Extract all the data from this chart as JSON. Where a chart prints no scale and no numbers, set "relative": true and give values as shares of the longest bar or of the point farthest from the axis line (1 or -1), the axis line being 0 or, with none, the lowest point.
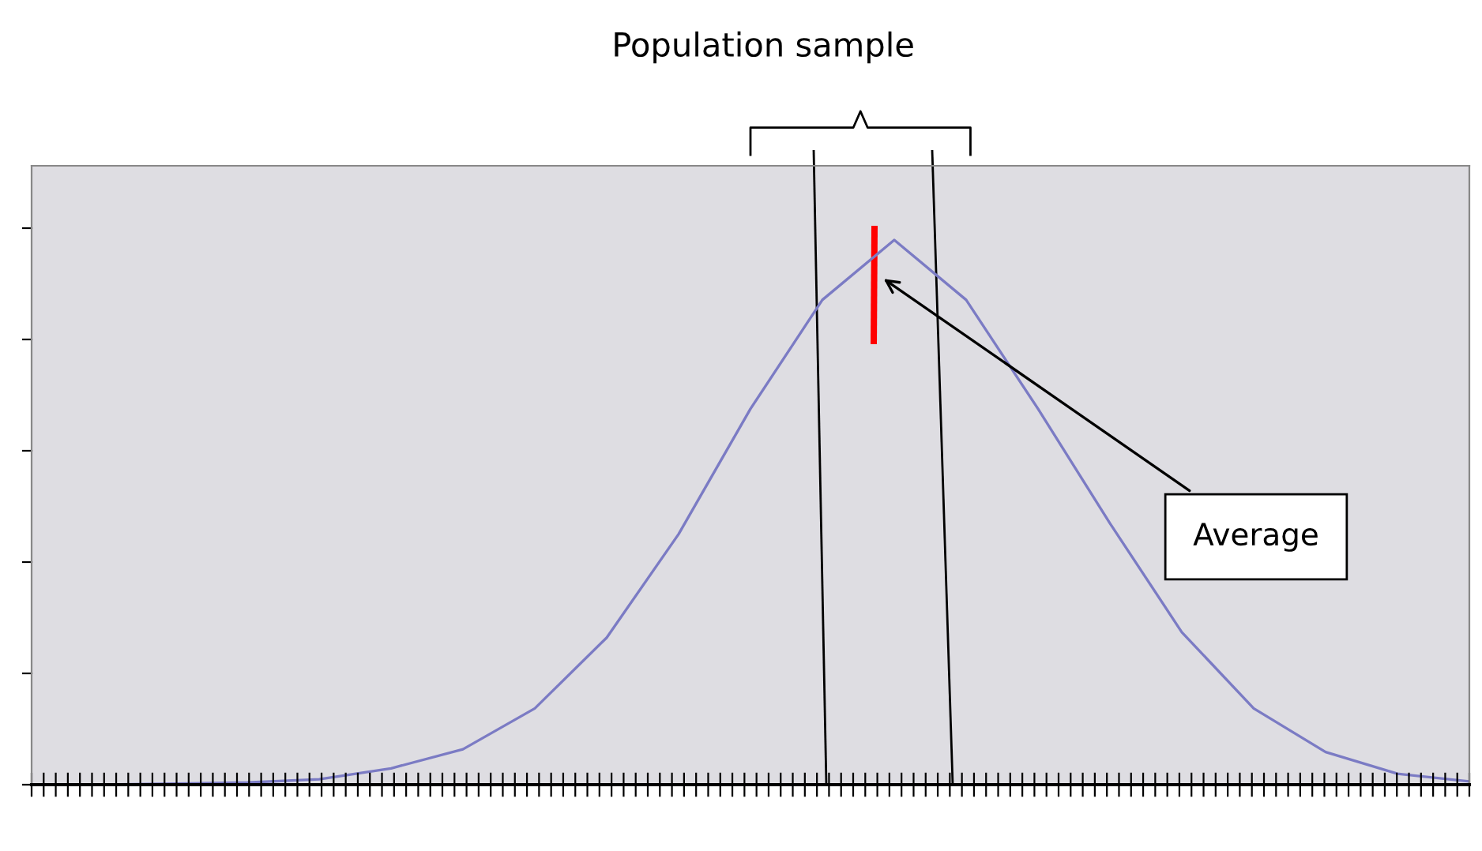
{
  "chart_data": {
    "type": "line",
    "title": "Population sample",
    "relative": true,
    "categories": [
      null,
      null,
      null,
      null,
      null,
      null,
      null,
      null,
      null,
      null,
      null,
      null,
      null,
      null,
      null,
      null,
      null,
      null,
      null,
      null,
      null
    ],
    "series": [
      {
        "color": "#7b7bc4",
        "values": [
          0,
          0,
          0.002,
          0.004,
          0.01,
          0.03,
          0.065,
          0.14,
          0.27,
          0.46,
          0.69,
          0.89,
          1,
          0.89,
          0.69,
          0.48,
          0.28,
          0.14,
          0.06,
          0.02,
          0.006
        ]
      }
    ],
    "annotations": [
      "Average"
    ],
    "legend": false
  }
}
